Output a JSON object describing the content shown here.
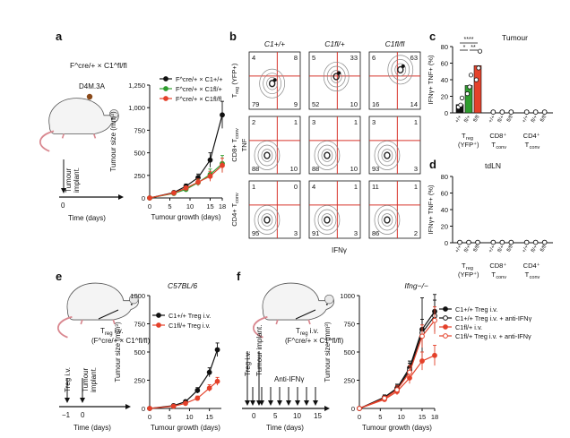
{
  "panels": {
    "a": {
      "letter": "a",
      "mouse_genotype": "F^cre/+ × C1^fl/fl",
      "tumour_line": "D4M.3A",
      "timeline": [
        "Tumour",
        "implant."
      ],
      "time_axis": "Time (days)",
      "time_tick": "0"
    },
    "b": {
      "letter": "b",
      "columns": [
        "C1+/+",
        "C1fl/+",
        "C1fl/fl"
      ],
      "row_labels": [
        [
          "T",
          "reg",
          " (YFP+)"
        ],
        [
          "CD8+ T",
          "conv",
          ""
        ],
        [
          "CD4+ T",
          "conv",
          ""
        ]
      ],
      "y_axis_label": "TNF",
      "x_axis_label": "IFNγ",
      "quadrants": [
        [
          [
            "4",
            "8",
            "79",
            "9"
          ],
          [
            "5",
            "33",
            "52",
            "10"
          ],
          [
            "6",
            "63",
            "16",
            "14"
          ]
        ],
        [
          [
            "2",
            "1",
            "88",
            "10"
          ],
          [
            "3",
            "1",
            "88",
            "10"
          ],
          [
            "3",
            "1",
            "93",
            "3"
          ]
        ],
        [
          [
            "1",
            "0",
            "95",
            "3"
          ],
          [
            "4",
            "1",
            "91",
            "3"
          ],
          [
            "11",
            "1",
            "86",
            "2"
          ]
        ]
      ]
    },
    "c": {
      "letter": "c",
      "title": "Tumour",
      "significance": [
        "****",
        "*",
        "**"
      ]
    },
    "d": {
      "letter": "d",
      "title": "tdLN"
    },
    "e": {
      "letter": "e",
      "transfer": [
        "T",
        "reg",
        " i.v."
      ],
      "donor_genotype": "(F^cre/+ × C1^fl/fl)",
      "timeline": [
        "Treg i.v.",
        "Tumour",
        "implant."
      ],
      "time_axis": "Time (days)",
      "time_ticks": [
        "−1",
        "0"
      ]
    },
    "f": {
      "letter": "f",
      "transfer": [
        "T",
        "reg",
        " i.v."
      ],
      "donor_genotype": "(F^cre/+ × C1^fl/fl)",
      "timeline": [
        "Treg i.v.",
        "Tumour implant.",
        "Anti-IFNγ"
      ],
      "time_axis": "Time (days)",
      "time_ticks": [
        "0",
        "5",
        "10",
        "15"
      ]
    }
  },
  "chart_data": [
    {
      "id": "a",
      "type": "line",
      "xlabel": "Tumour growth (days)",
      "ylabel": "Tumour size (mm³)",
      "xlim": [
        0,
        18
      ],
      "ylim": [
        0,
        1250
      ],
      "xticks": [
        0,
        5,
        10,
        15,
        18
      ],
      "yticks": [
        0,
        250,
        500,
        750,
        1000,
        1250
      ],
      "ytick_labels": [
        "0",
        "250",
        "500",
        "750",
        "1,000",
        "1,250"
      ],
      "legend_position": "top-left",
      "series": [
        {
          "name": "F^cre/+ × C1+/+",
          "color": "#111111",
          "marker": "circle",
          "x": [
            0,
            6,
            9,
            12,
            15,
            18
          ],
          "y": [
            0,
            60,
            130,
            225,
            420,
            920
          ],
          "err": [
            0,
            15,
            25,
            40,
            80,
            150
          ]
        },
        {
          "name": "F^cre/+ × C1fl/+",
          "color": "#2f9d2f",
          "marker": "circle",
          "x": [
            0,
            6,
            9,
            12,
            15,
            18
          ],
          "y": [
            0,
            50,
            95,
            170,
            260,
            380
          ],
          "err": [
            0,
            12,
            20,
            35,
            60,
            90
          ]
        },
        {
          "name": "F^cre/+ × C1fl/fl",
          "color": "#e4412a",
          "marker": "circle",
          "x": [
            0,
            6,
            9,
            12,
            15,
            18
          ],
          "y": [
            0,
            55,
            110,
            175,
            240,
            360
          ],
          "err": [
            0,
            12,
            22,
            35,
            55,
            80
          ]
        }
      ]
    },
    {
      "id": "c",
      "type": "bar",
      "ylabel": "IFNγ+ TNF+ (%)",
      "ylim": [
        0,
        80
      ],
      "yticks": [
        0,
        20,
        40,
        60,
        80
      ],
      "groups": [
        "T reg (YFP+)",
        "CD8+ T conv",
        "CD4+ T conv"
      ],
      "genotypes": [
        "+/+",
        "fl/+",
        "fl/fl"
      ],
      "colors": [
        "#111111",
        "#2f9d2f",
        "#e4412a"
      ],
      "values": [
        [
          10,
          33,
          57
        ],
        [
          1,
          1,
          1
        ],
        [
          1,
          1,
          1
        ]
      ]
    },
    {
      "id": "d",
      "type": "bar",
      "ylabel": "IFNγ+ TNF+ (%)",
      "ylim": [
        0,
        80
      ],
      "yticks": [
        0,
        20,
        40,
        60,
        80
      ],
      "groups": [
        "T reg (YFP+)",
        "CD8+ T conv",
        "CD4+ T conv"
      ],
      "genotypes": [
        "+/+",
        "fl/+",
        "fl/fl"
      ],
      "values": [
        [
          0.5,
          0.5,
          0.5
        ],
        [
          0.5,
          0.5,
          0.5
        ],
        [
          0.5,
          0.5,
          0.5
        ]
      ]
    },
    {
      "id": "e",
      "type": "line",
      "title": "C57BL/6",
      "xlabel": "Tumour growth (days)",
      "ylabel": "Tumour size (mm³)",
      "xlim": [
        0,
        18
      ],
      "ylim": [
        0,
        1000
      ],
      "xticks": [
        0,
        5,
        10,
        15
      ],
      "yticks": [
        0,
        250,
        500,
        750,
        1000
      ],
      "legend_position": "top-left",
      "series": [
        {
          "name": "C1+/+ Treg i.v.",
          "color": "#111111",
          "marker": "circle",
          "x": [
            0,
            6,
            9,
            12,
            15,
            17
          ],
          "y": [
            0,
            25,
            60,
            160,
            320,
            520
          ],
          "err": [
            0,
            8,
            15,
            25,
            40,
            60
          ]
        },
        {
          "name": "C1fl/+ Treg i.v.",
          "color": "#e4412a",
          "marker": "circle",
          "x": [
            0,
            6,
            9,
            12,
            15,
            17
          ],
          "y": [
            0,
            20,
            45,
            90,
            180,
            240
          ],
          "err": [
            0,
            8,
            12,
            20,
            30,
            35
          ]
        }
      ]
    },
    {
      "id": "f",
      "type": "line",
      "title": "Ifng−/−",
      "xlabel": "Tumour growth (days)",
      "ylabel": "Tumour size (mm³)",
      "xlim": [
        0,
        18
      ],
      "ylim": [
        0,
        1000
      ],
      "xticks": [
        0,
        5,
        10,
        15,
        18
      ],
      "yticks": [
        0,
        250,
        500,
        750,
        1000
      ],
      "legend_position": "top-right",
      "series": [
        {
          "name": "C1+/+ Treg i.v.",
          "color": "#111111",
          "marker": "circle",
          "fill": true,
          "x": [
            0,
            6,
            9,
            12,
            15,
            18
          ],
          "y": [
            0,
            100,
            180,
            360,
            700,
            860
          ],
          "err": [
            0,
            20,
            35,
            60,
            280,
            150
          ]
        },
        {
          "name": "C1+/+ Treg i.v. + anti-IFNγ",
          "color": "#111111",
          "marker": "circle",
          "fill": false,
          "x": [
            0,
            6,
            9,
            12,
            15,
            18
          ],
          "y": [
            0,
            90,
            170,
            340,
            670,
            820
          ],
          "err": [
            0,
            20,
            35,
            60,
            120,
            140
          ]
        },
        {
          "name": "C1fl/+ i.v.",
          "color": "#e4412a",
          "marker": "circle",
          "fill": true,
          "x": [
            0,
            6,
            9,
            12,
            15,
            18
          ],
          "y": [
            0,
            80,
            150,
            270,
            420,
            470
          ],
          "err": [
            0,
            18,
            30,
            50,
            80,
            90
          ]
        },
        {
          "name": "C1fl/+ Treg i.v. + anti-IFNγ",
          "color": "#e4412a",
          "marker": "circle",
          "fill": false,
          "x": [
            0,
            6,
            9,
            12,
            15,
            18
          ],
          "y": [
            0,
            90,
            165,
            320,
            640,
            780
          ],
          "err": [
            0,
            20,
            35,
            60,
            100,
            120
          ]
        }
      ]
    }
  ]
}
